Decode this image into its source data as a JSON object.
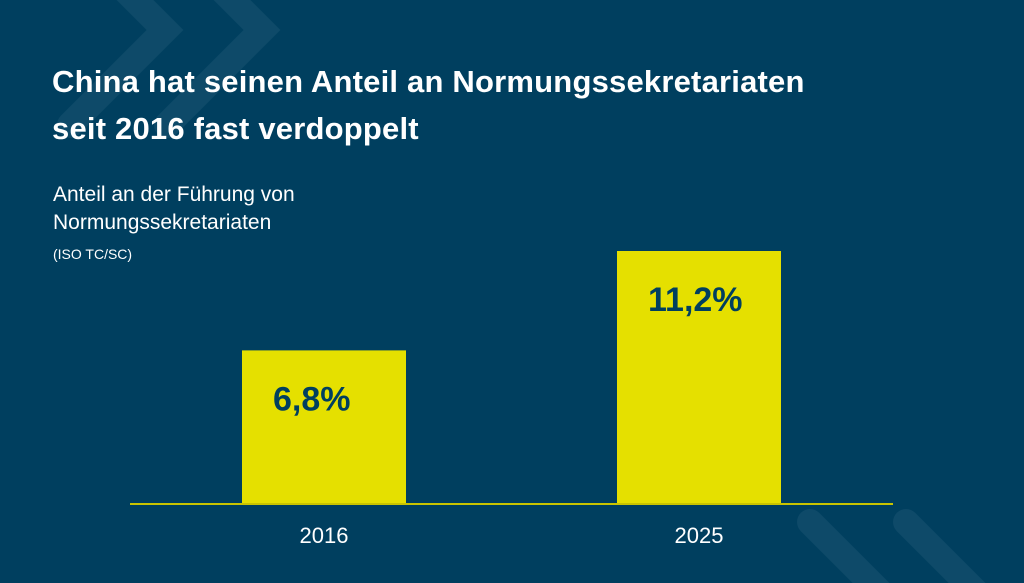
{
  "header": {
    "title_line1": "China hat seinen Anteil an Normungssekretariaten",
    "title_line2": "seit 2016 fast verdoppelt"
  },
  "chart_data": {
    "type": "bar",
    "title": "China hat seinen Anteil an Normungssekretariaten seit 2016 fast verdoppelt",
    "ylabel_line1": "Anteil an der Führung von",
    "ylabel_line2": "Normungssekretariaten",
    "ylabel_note": "(ISO TC/SC)",
    "categories": [
      "2016",
      "2025"
    ],
    "values": [
      6.8,
      11.2
    ],
    "data_labels": [
      "6,8%",
      "11,2%"
    ],
    "unit": "%",
    "ylim": [
      0,
      11.2
    ],
    "grid": false,
    "legend": "none"
  },
  "colors": {
    "background": "#003f5f",
    "bar": "#e5e000",
    "axis": "#c9c400",
    "label": "#003f5f",
    "decor": "#0e4a69"
  }
}
